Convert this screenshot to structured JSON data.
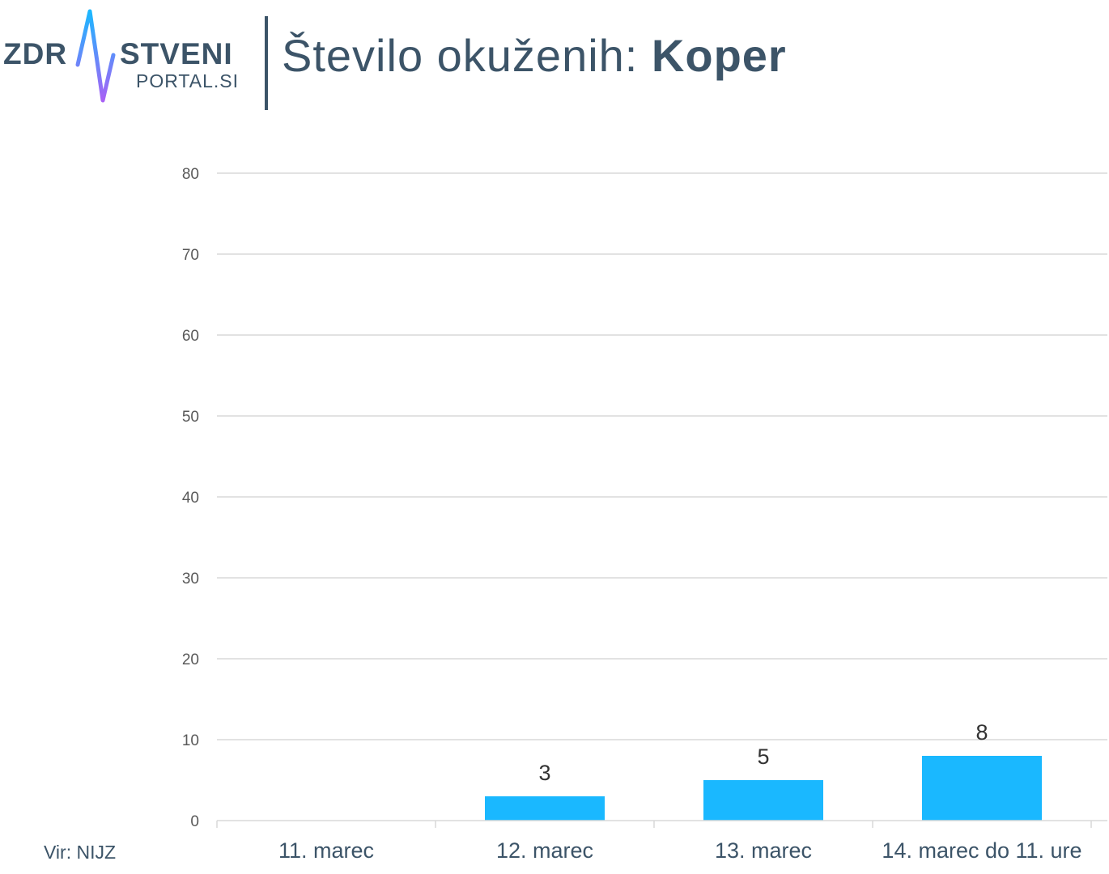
{
  "logo": {
    "word_left": "ZDR",
    "word_right": "STVENI",
    "sub": "PORTAL.SI",
    "text_color": "#3c5468",
    "pulse_gradient": [
      "#1ab8ff",
      "#a861f5"
    ]
  },
  "header": {
    "title_prefix": "Število okuženih: ",
    "title_place": "Koper"
  },
  "footer": {
    "source": "Vir: NIJZ"
  },
  "chart_data": {
    "type": "bar",
    "title": "Število okuženih: Koper",
    "categories": [
      "11. marec",
      "12. marec",
      "13. marec",
      "14. marec do 11. ure"
    ],
    "values": [
      0,
      3,
      5,
      8
    ],
    "data_labels": [
      "",
      "3",
      "5",
      "8"
    ],
    "xlabel": "",
    "ylabel": "",
    "ylim": [
      0,
      80
    ],
    "yticks": [
      0,
      10,
      20,
      30,
      40,
      50,
      60,
      70,
      80
    ],
    "grid": true,
    "legend": "none",
    "bar_color": "#1ab8ff",
    "grid_color": "#d9d9d9"
  }
}
